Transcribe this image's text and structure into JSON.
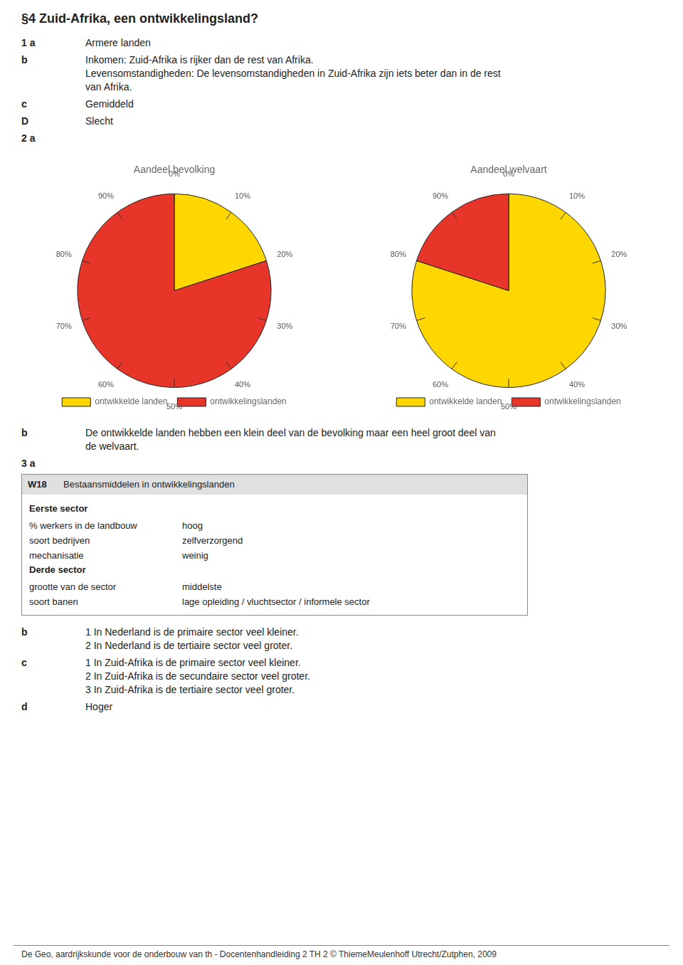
{
  "title": "§4 Zuid-Afrika, een ontwikkelingsland?",
  "annotations": [
    {
      "label": "1 a",
      "lines": [
        "Armere landen"
      ]
    },
    {
      "label": "b",
      "lines": [
        "Inkomen: Zuid-Afrika is rijker dan de rest van Afrika.",
        "Levensomstandigheden: De levensomstandigheden in Zuid-Afrika zijn iets beter dan in de rest",
        "van Afrika."
      ]
    },
    {
      "label": "c",
      "lines": [
        "Gemiddeld"
      ]
    },
    {
      "label": "D",
      "lines": [
        "Slecht"
      ]
    },
    {
      "label": "2 a"
    },
    {
      "label": "b",
      "lines": [
        "De ontwikkelde landen hebben een klein deel van de bevolking maar een heel groot deel van",
        "de welvaart."
      ]
    },
    {
      "label": "3 a"
    },
    {
      "label": "b",
      "lines": [
        "1 In Nederland is de primaire sector veel kleiner.",
        "2 In Nederland is de tertiaire sector veel groter."
      ]
    },
    {
      "label": "c",
      "lines": [
        "1 In Zuid-Afrika is de primaire sector veel kleiner.",
        "2 In Zuid-Afrika is de secundaire sector veel groter.",
        "3 In Zuid-Afrika is de tertiaire sector veel groter."
      ]
    },
    {
      "label": "d",
      "lines": [
        "Hoger"
      ]
    }
  ],
  "chart_data": [
    {
      "type": "pie",
      "title": "Aandeel bevolking",
      "categories": [
        "ontwikkelde landen",
        "ontwikkelingslanden"
      ],
      "values": [
        20,
        80
      ],
      "colors": [
        "#FFD700",
        "#E8352A"
      ],
      "legend": "bottom",
      "ylim": [
        0,
        100
      ],
      "yticks": [
        {
          "value": 0,
          "label": "0%"
        },
        {
          "value": 10,
          "label": "10%"
        },
        {
          "value": 20,
          "label": "20%"
        },
        {
          "value": 30,
          "label": "30%"
        },
        {
          "value": 40,
          "label": "40%"
        },
        {
          "value": 50,
          "label": "50%"
        },
        {
          "value": 60,
          "label": "60%"
        },
        {
          "value": 70,
          "label": "70%"
        },
        {
          "value": 80,
          "label": "80%"
        },
        {
          "value": 90,
          "label": "90%"
        }
      ]
    },
    {
      "type": "pie",
      "title": "Aandeel welvaart",
      "categories": [
        "ontwikkelde landen",
        "ontwikkelingslanden"
      ],
      "values": [
        80,
        20
      ],
      "colors": [
        "#FFD700",
        "#E8352A"
      ],
      "legend": "bottom",
      "ylim": [
        0,
        100
      ],
      "yticks": [
        {
          "value": 0,
          "label": "0%"
        },
        {
          "value": 10,
          "label": "10%"
        },
        {
          "value": 20,
          "label": "20%"
        },
        {
          "value": 30,
          "label": "30%"
        },
        {
          "value": 40,
          "label": "40%"
        },
        {
          "value": 50,
          "label": "50%"
        },
        {
          "value": 60,
          "label": "60%"
        },
        {
          "value": 70,
          "label": "70%"
        },
        {
          "value": 80,
          "label": "80%"
        },
        {
          "value": 90,
          "label": "90%"
        }
      ]
    }
  ],
  "table": {
    "code": "W18",
    "header": "Bestaansmiddelen in ontwikkelingslanden",
    "rows": [
      {
        "section": "Eerste sector"
      },
      {
        "key": "% werkers in de landbouw",
        "value": "hoog"
      },
      {
        "key": "soort bedrijven",
        "value": "zelfverzorgend"
      },
      {
        "key": "mechanisatie",
        "value": "weinig"
      },
      {
        "section": "Derde sector"
      },
      {
        "key": "grootte van de sector",
        "value": "middelste"
      },
      {
        "key": "soort banen",
        "value": "lage opleiding / vluchtsector / informele sector"
      }
    ]
  },
  "footer": "De Geo, aardrijkskunde voor de onderbouw van th - Docentenhandleiding 2 TH   2  © ThiemeMeulenhoff Utrecht/Zutphen, 2009"
}
